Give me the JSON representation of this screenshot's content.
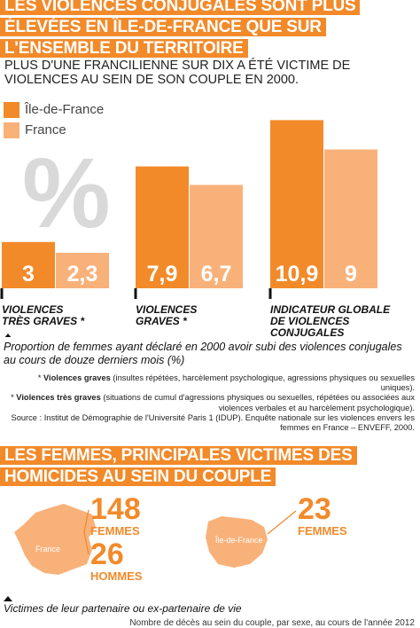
{
  "header": {
    "title_lines": [
      "LES VIOLENCES CONJUGALES SONT PLUS",
      "ÉLEVÉES EN ÎLE-DE-FRANCE QUE SUR",
      "L'ENSEMBLE DU TERRITOIRE"
    ],
    "subtitle": "Plus d'une francilienne sur dix a été victime de violences au sein de son couple en 2000."
  },
  "colors": {
    "idf": "#f28a2a",
    "france": "#f9b17a",
    "percent_glyph": "#d9d9d9"
  },
  "chart_data": {
    "type": "bar",
    "categories": [
      "VIOLENCES TRÈS GRAVES *",
      "VIOLENCES GRAVES *",
      "INDICATEUR GLOBALE DE VIOLENCES CONJUGALES"
    ],
    "category_lines": [
      [
        "VIOLENCES",
        "TRÈS GRAVES *"
      ],
      [
        "VIOLENCES",
        "GRAVES *"
      ],
      [
        "INDICATEUR GLOBALE",
        "DE VIOLENCES CONJUGALES"
      ]
    ],
    "series": [
      {
        "name": "Île-de-France",
        "values": [
          3,
          7.9,
          10.9
        ],
        "labels": [
          "3",
          "7,9",
          "10,9"
        ]
      },
      {
        "name": "France",
        "values": [
          2.3,
          6.7,
          9
        ],
        "labels": [
          "2,3",
          "6,7",
          "9"
        ]
      }
    ],
    "ylim": [
      0,
      11.5
    ],
    "unit_symbol": "%",
    "grid": false,
    "legend": "top-left"
  },
  "footnotes": {
    "caption": "Proportion de femmes ayant déclaré en 2000 avoir subi des violences conjugales au cours de douze derniers mois (%)",
    "note_graves_term": "Violences graves",
    "note_graves_text": "(insultes répétées, harcèlement psychologique, agressions physiques ou sexuelles uniques).",
    "note_tres_graves_term": "Violences très graves",
    "note_tres_graves_text": "(situations de cumul d'agressions physiques ou sexuelles, répétées ou associées aux violences verbales et au harcèlement psychologique).",
    "source_label": "Source :",
    "source_text": "Institut de Démographie de l'Université Paris 1 (IDUP). Enquête nationale sur les violences envers les femmes en France – ENVEFF, 2000."
  },
  "section2": {
    "title_lines": [
      "LES FEMMES, PRINCIPALES VICTIMES DES",
      "HOMICIDES AU SEIN DU COUPLE"
    ],
    "france_map_label": "France",
    "idf_map_label": "Île-de-France",
    "france_women": "148",
    "france_women_label": "FEMMES",
    "france_men": "26",
    "france_men_label": "HOMMES",
    "idf_women": "23",
    "idf_women_label": "FEMMES",
    "caption": "Victimes de leur partenaire ou ex-partenaire de vie",
    "bottom_note": "Nombre de décès au sein du couple, par sexe, au cours de l'année 2012"
  }
}
